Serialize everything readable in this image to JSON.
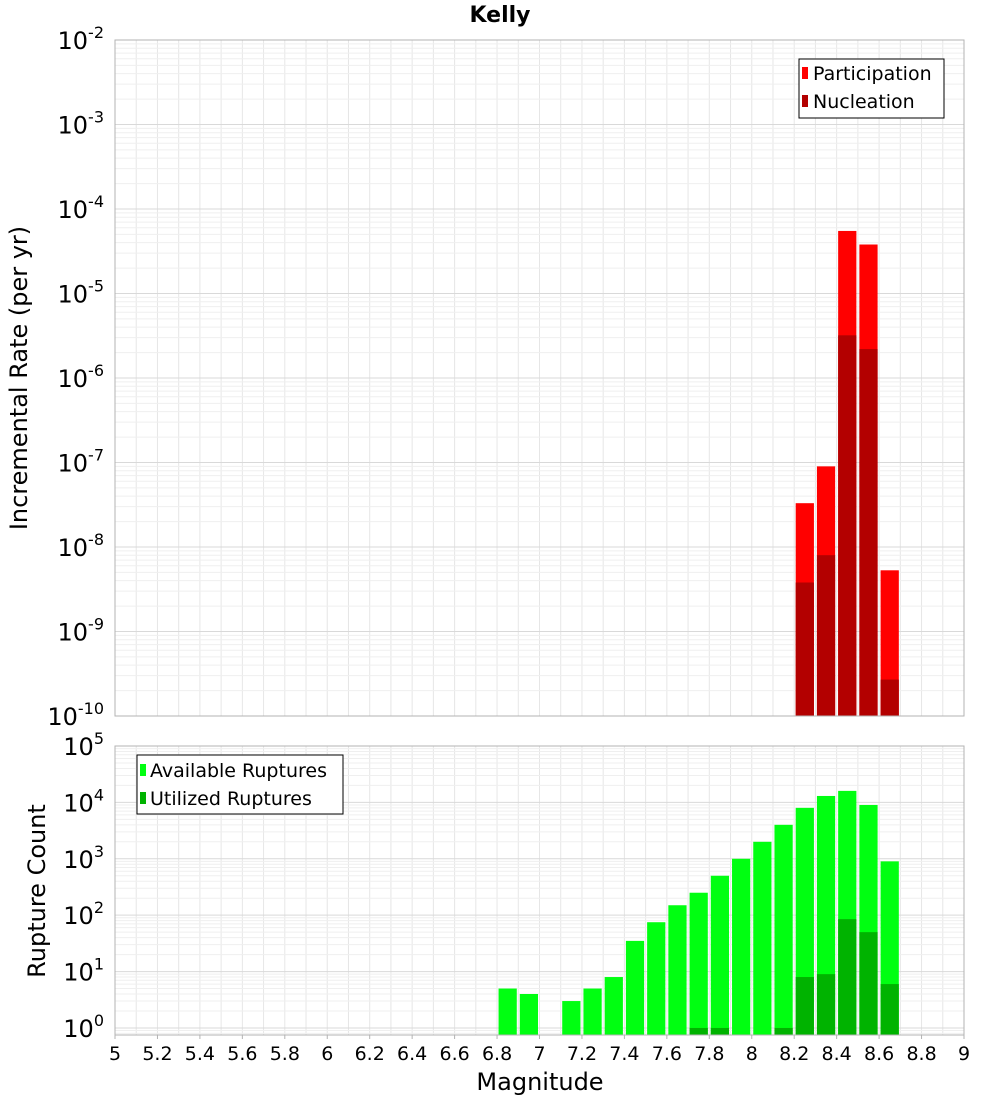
{
  "title": "Kelly",
  "colors": {
    "participation": "#ff0000",
    "nucleation": "#b30000",
    "available": "#00ff11",
    "utilized": "#00b300",
    "grid": "#e6e6e6",
    "frame": "#b3b3b3"
  },
  "chart_data": [
    {
      "type": "bar",
      "title": "Kelly",
      "ylabel": "Incremental Rate (per yr)",
      "xlabel": "",
      "yscale": "log",
      "ylim": [
        1e-10,
        0.01
      ],
      "xlim": [
        5,
        9
      ],
      "grid": true,
      "legend_position": "top-right",
      "y_ticks": [
        {
          "base": "10",
          "exp": "-2"
        },
        {
          "base": "10",
          "exp": "-3"
        },
        {
          "base": "10",
          "exp": "-4"
        },
        {
          "base": "10",
          "exp": "-5"
        },
        {
          "base": "10",
          "exp": "-6"
        },
        {
          "base": "10",
          "exp": "-7"
        },
        {
          "base": "10",
          "exp": "-8"
        },
        {
          "base": "10",
          "exp": "-9"
        },
        {
          "base": "10",
          "exp": "-10"
        }
      ],
      "x": [
        8.25,
        8.35,
        8.45,
        8.55,
        8.65
      ],
      "series": [
        {
          "name": "Participation",
          "color": "#ff0000",
          "values": [
            3.3e-08,
            9e-08,
            5.5e-05,
            3.8e-05,
            5.3e-09
          ]
        },
        {
          "name": "Nucleation",
          "color": "#b30000",
          "values": [
            3.8e-09,
            8e-09,
            3.2e-06,
            2.2e-06,
            2.7e-10
          ]
        }
      ]
    },
    {
      "type": "bar",
      "ylabel": "Rupture Count",
      "xlabel": "Magnitude",
      "yscale": "log",
      "ylim": [
        0.75,
        100000.0
      ],
      "xlim": [
        5,
        9
      ],
      "grid": true,
      "legend_position": "top-left",
      "x_ticks": [
        "5",
        "5.2",
        "5.4",
        "5.6",
        "5.8",
        "6",
        "6.2",
        "6.4",
        "6.6",
        "6.8",
        "7",
        "7.2",
        "7.4",
        "7.6",
        "7.8",
        "8",
        "8.2",
        "8.4",
        "8.6",
        "8.8",
        "9"
      ],
      "y_ticks": [
        {
          "base": "10",
          "exp": "5"
        },
        {
          "base": "10",
          "exp": "4"
        },
        {
          "base": "10",
          "exp": "3"
        },
        {
          "base": "10",
          "exp": "2"
        },
        {
          "base": "10",
          "exp": "1"
        },
        {
          "base": "10",
          "exp": "0"
        }
      ],
      "x": [
        6.85,
        6.95,
        7.15,
        7.25,
        7.35,
        7.45,
        7.55,
        7.65,
        7.75,
        7.85,
        7.95,
        8.05,
        8.15,
        8.25,
        8.35,
        8.45,
        8.55,
        8.65
      ],
      "series": [
        {
          "name": "Available Ruptures",
          "color": "#00ff11",
          "values": [
            5,
            4,
            3,
            5,
            8,
            35,
            75,
            150,
            250,
            500,
            1000,
            2000,
            4000,
            8000,
            13000,
            16000,
            9000,
            900
          ]
        },
        {
          "name": "Utilized Ruptures",
          "color": "#00b300",
          "values": [
            null,
            null,
            null,
            null,
            null,
            null,
            null,
            null,
            1,
            1,
            null,
            null,
            1,
            8,
            9,
            85,
            50,
            6
          ]
        }
      ]
    }
  ]
}
